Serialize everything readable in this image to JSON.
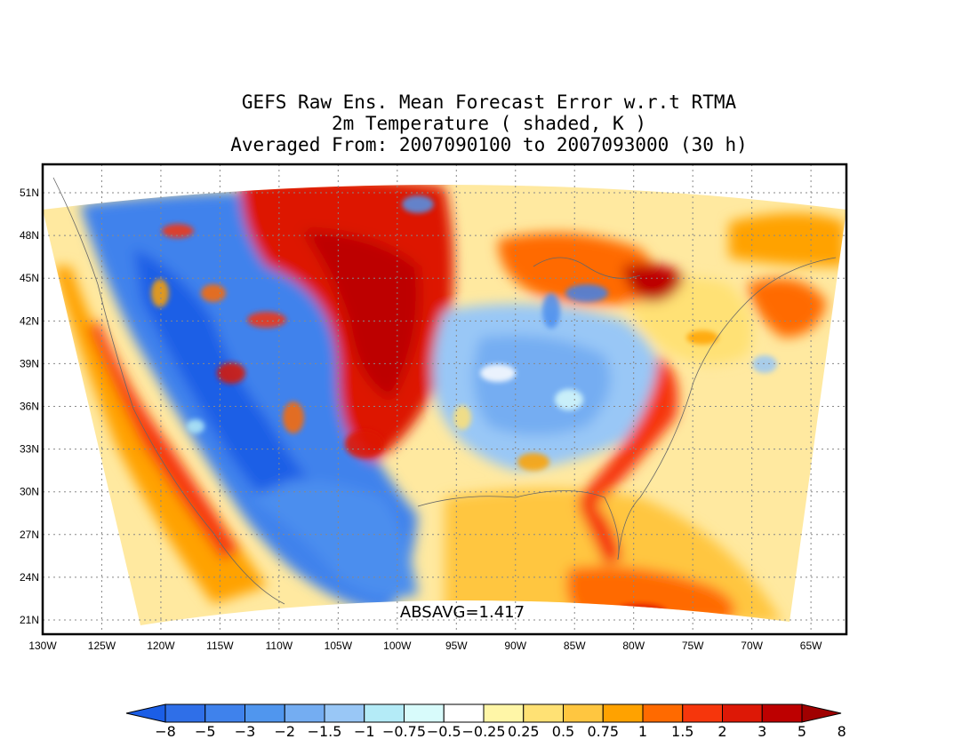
{
  "title": {
    "line1": "GEFS Raw Ens. Mean Forecast Error w.r.t RTMA",
    "line2": "2m Temperature ( shaded, K )",
    "line3": "Averaged From: 2007090100 to 2007093000 (30 h)"
  },
  "map": {
    "lat_labels": [
      "51N",
      "48N",
      "45N",
      "42N",
      "39N",
      "36N",
      "33N",
      "30N",
      "27N",
      "24N",
      "21N"
    ],
    "lon_labels": [
      "130W",
      "125W",
      "120W",
      "115W",
      "110W",
      "105W",
      "100W",
      "95W",
      "90W",
      "85W",
      "80W",
      "75W",
      "70W",
      "65W"
    ],
    "absavg": "ABSAVG=1.417",
    "lat_range": [
      20,
      53
    ],
    "lon_range": [
      -130,
      -62
    ],
    "grid": true
  },
  "colorbar": {
    "levels": [
      "-8",
      "-5",
      "-3",
      "-2",
      "-1.5",
      "-1",
      "-0.75",
      "-0.5",
      "-0.25",
      "0.25",
      "0.5",
      "0.75",
      "1",
      "1.5",
      "2",
      "3",
      "5",
      "8"
    ],
    "colors": [
      "#1b5ee6",
      "#2f6fe8",
      "#3f82ec",
      "#5096ee",
      "#74adf2",
      "#99c7f6",
      "#b4ebf7",
      "#d8fbfb",
      "#ffffff",
      "#fff6a7",
      "#ffe174",
      "#ffc640",
      "#ffa200",
      "#ff6a00",
      "#f6360c",
      "#dd1806",
      "#bd0000",
      "#a00000"
    ]
  },
  "colors": {
    "cold_deep": "#1f63e0",
    "cold": "#4b8eee",
    "cold_light": "#b4ebf7",
    "neutral": "#ffffff",
    "warm_light": "#ffe174",
    "warm": "#ffa200",
    "hot": "#f6360c",
    "hot_deep": "#bd0000"
  }
}
